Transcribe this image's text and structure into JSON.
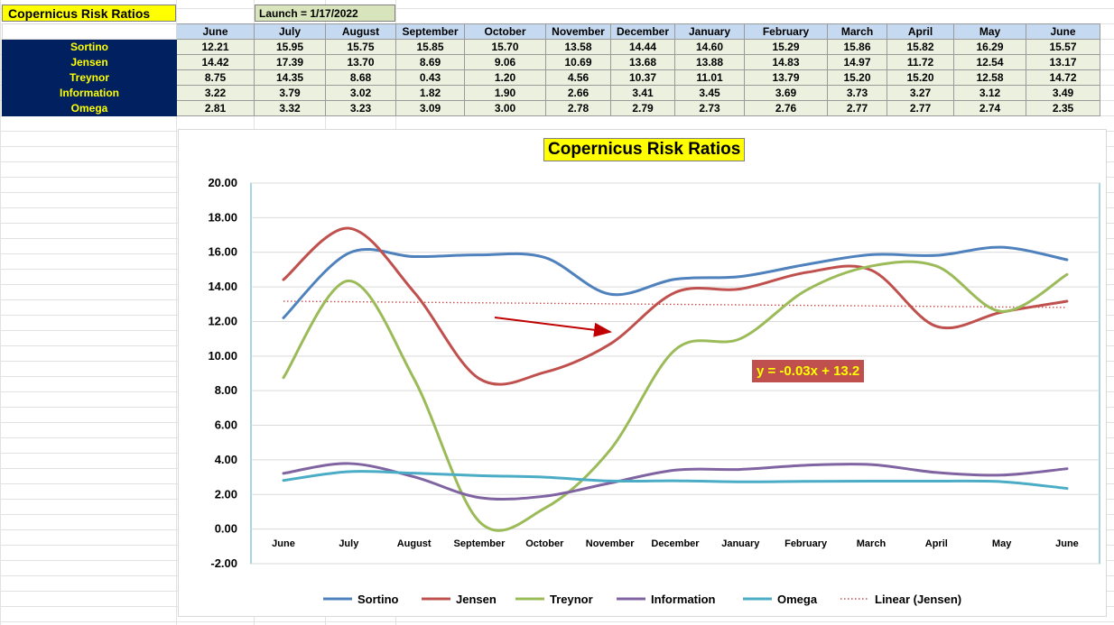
{
  "sheet": {
    "title": "Copernicus Risk Ratios",
    "launch": "Launch = 1/17/2022",
    "months": [
      "June",
      "July",
      "August",
      "September",
      "October",
      "November",
      "December",
      "January",
      "February",
      "March",
      "April",
      "May",
      "June"
    ],
    "rows": [
      {
        "label": "Sortino",
        "values": [
          "12.21",
          "15.95",
          "15.75",
          "15.85",
          "15.70",
          "13.58",
          "14.44",
          "14.60",
          "15.29",
          "15.86",
          "15.82",
          "16.29",
          "15.57"
        ]
      },
      {
        "label": "Jensen",
        "values": [
          "14.42",
          "17.39",
          "13.70",
          "8.69",
          "9.06",
          "10.69",
          "13.68",
          "13.88",
          "14.83",
          "14.97",
          "11.72",
          "12.54",
          "13.17"
        ]
      },
      {
        "label": "Treynor",
        "values": [
          "8.75",
          "14.35",
          "8.68",
          "0.43",
          "1.20",
          "4.56",
          "10.37",
          "11.01",
          "13.79",
          "15.20",
          "15.20",
          "12.58",
          "14.72"
        ]
      },
      {
        "label": "Information",
        "values": [
          "3.22",
          "3.79",
          "3.02",
          "1.82",
          "1.90",
          "2.66",
          "3.41",
          "3.45",
          "3.69",
          "3.73",
          "3.27",
          "3.12",
          "3.49"
        ]
      },
      {
        "label": "Omega",
        "values": [
          "2.81",
          "3.32",
          "3.23",
          "3.09",
          "3.00",
          "2.78",
          "2.79",
          "2.73",
          "2.76",
          "2.77",
          "2.77",
          "2.74",
          "2.35"
        ]
      }
    ]
  },
  "chart_data": {
    "type": "line",
    "title": "Copernicus Risk Ratios",
    "categories": [
      "June",
      "July",
      "August",
      "September",
      "October",
      "November",
      "December",
      "January",
      "February",
      "March",
      "April",
      "May",
      "June"
    ],
    "ylim": [
      -2,
      20
    ],
    "yticks": [
      "-2.00",
      "0.00",
      "2.00",
      "4.00",
      "6.00",
      "8.00",
      "10.00",
      "12.00",
      "14.00",
      "16.00",
      "18.00",
      "20.00"
    ],
    "grid": true,
    "smooth": true,
    "legend_position": "bottom",
    "series": [
      {
        "name": "Sortino",
        "color": "#4f81bd",
        "values": [
          12.21,
          15.95,
          15.75,
          15.85,
          15.7,
          13.58,
          14.44,
          14.6,
          15.29,
          15.86,
          15.82,
          16.29,
          15.57
        ]
      },
      {
        "name": "Jensen",
        "color": "#c0504d",
        "values": [
          14.42,
          17.39,
          13.7,
          8.69,
          9.06,
          10.69,
          13.68,
          13.88,
          14.83,
          14.97,
          11.72,
          12.54,
          13.17
        ]
      },
      {
        "name": "Treynor",
        "color": "#9bbb59",
        "values": [
          8.75,
          14.35,
          8.68,
          0.43,
          1.2,
          4.56,
          10.37,
          11.01,
          13.79,
          15.2,
          15.2,
          12.58,
          14.72
        ]
      },
      {
        "name": "Information",
        "color": "#8064a2",
        "values": [
          3.22,
          3.79,
          3.02,
          1.82,
          1.9,
          2.66,
          3.41,
          3.45,
          3.69,
          3.73,
          3.27,
          3.12,
          3.49
        ]
      },
      {
        "name": "Omega",
        "color": "#4bacc6",
        "values": [
          2.81,
          3.32,
          3.23,
          3.09,
          3.0,
          2.78,
          2.79,
          2.73,
          2.76,
          2.77,
          2.77,
          2.74,
          2.35
        ]
      }
    ],
    "trendline": {
      "name": "Linear (Jensen)",
      "color": "#c0504d",
      "style": "dotted",
      "slope": -0.03,
      "intercept": 13.2,
      "equation": "y = -0.03x + 13.2"
    },
    "annotation_arrow": {
      "color": "#c00000"
    }
  }
}
